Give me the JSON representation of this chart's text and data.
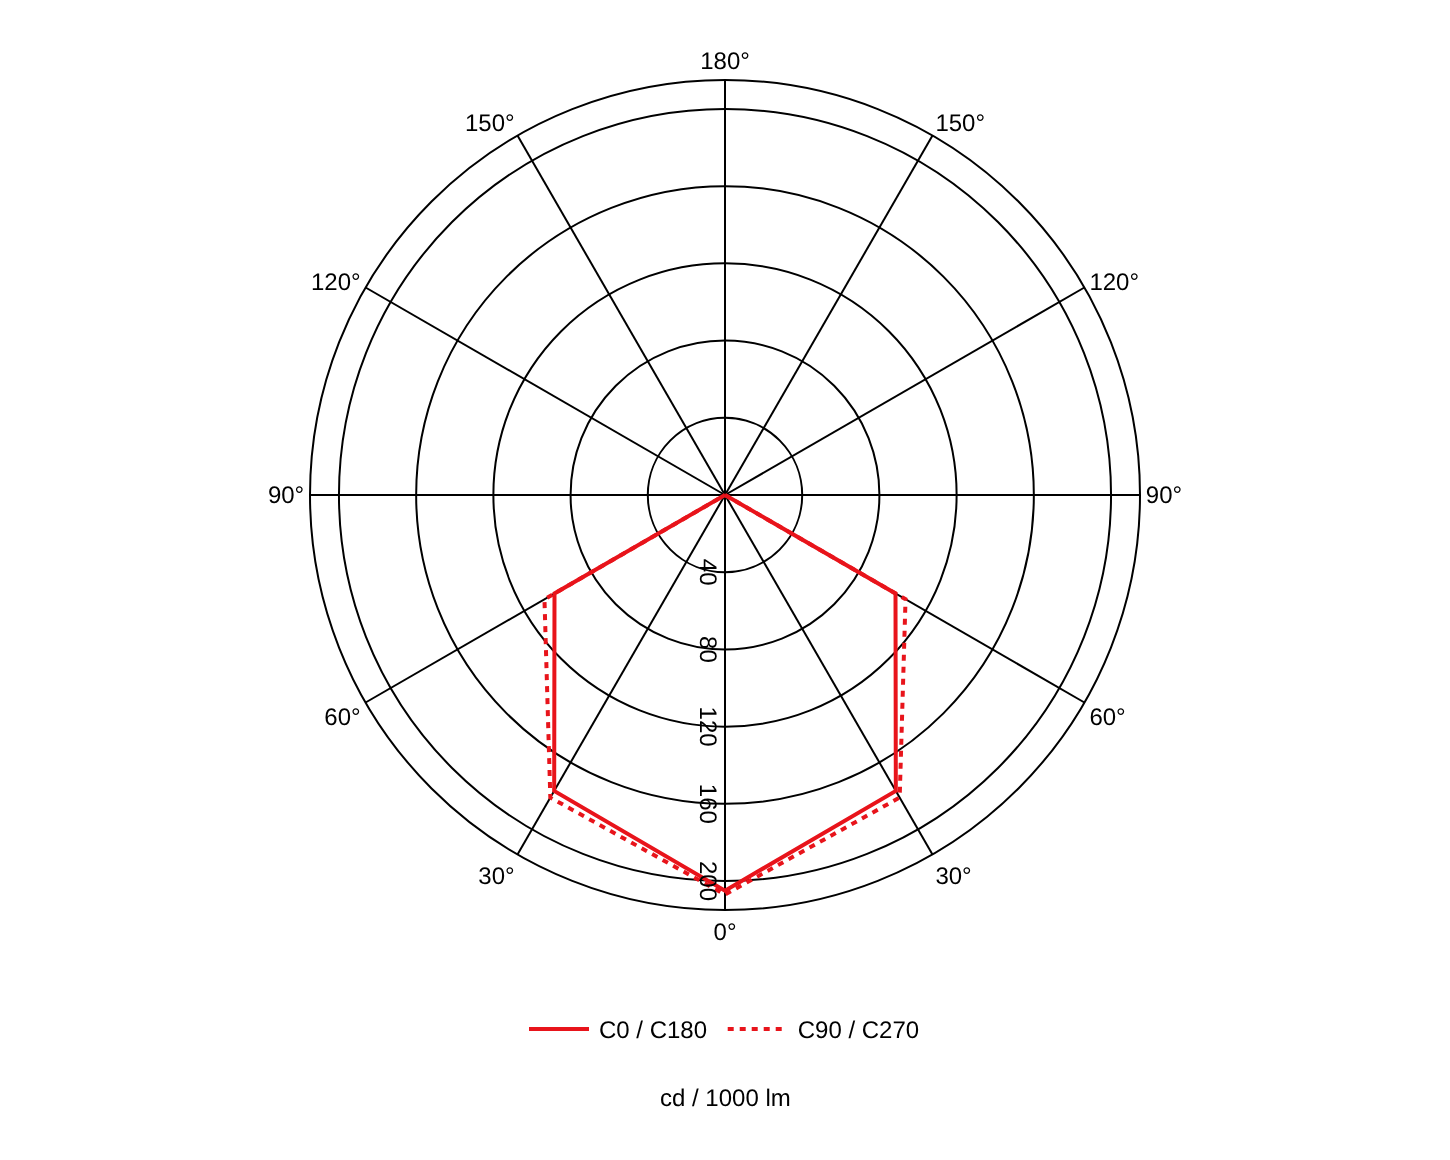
{
  "chart_data": {
    "type": "radar",
    "xlabel": "cd / 1000 lm",
    "categories": [
      "180°",
      "150°",
      "120°",
      "90°",
      "60°",
      "30°",
      "0°",
      "30°",
      "60°",
      "90°",
      "120°",
      "150°"
    ],
    "series": [
      {
        "name": "C0 / C180",
        "color": "#e8141b",
        "line_style": "solid",
        "values": [
          0,
          0,
          0,
          0,
          102,
          177,
          205,
          177,
          102,
          0,
          0,
          0
        ]
      },
      {
        "name": "C90 / C270",
        "color": "#e8141b",
        "line_style": "dotted",
        "values": [
          0,
          0,
          0,
          0,
          108,
          181,
          207,
          181,
          108,
          0,
          0,
          0
        ]
      }
    ],
    "ylim": [
      0,
      215
    ],
    "yticks": [
      40,
      80,
      120,
      160,
      200
    ],
    "grid": true,
    "legend": "bottom",
    "marker": "none"
  }
}
